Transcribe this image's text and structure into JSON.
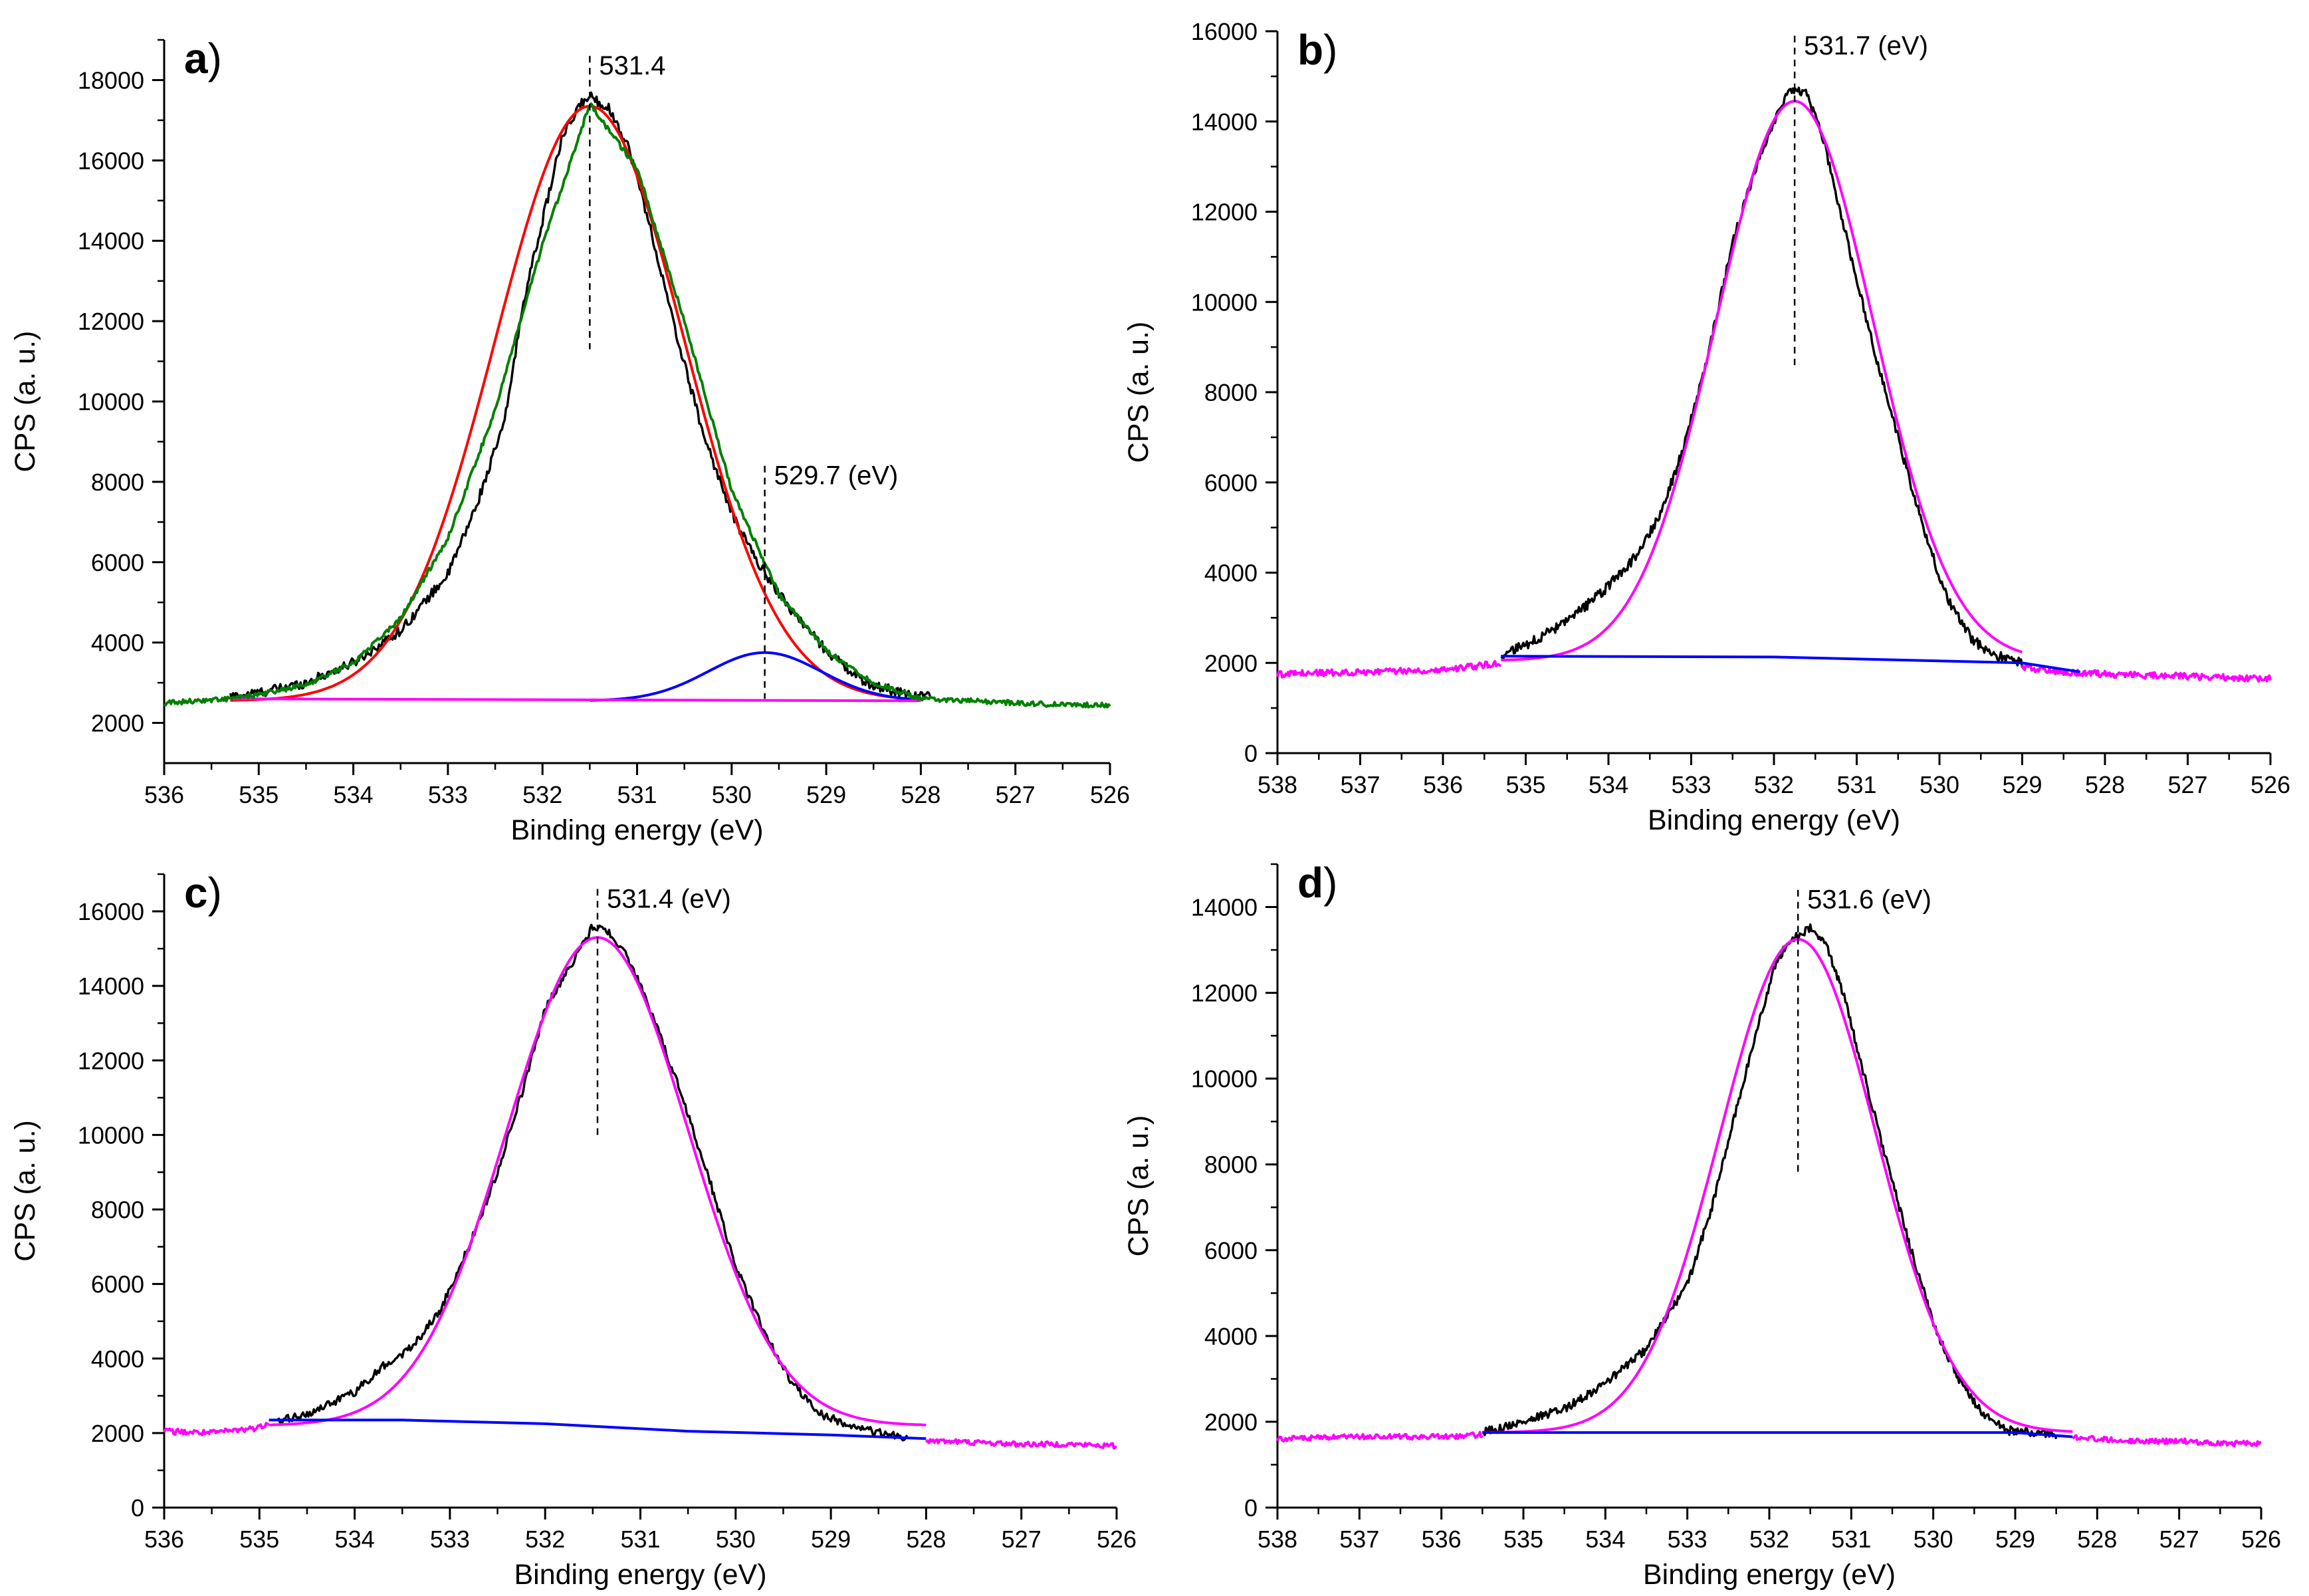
{
  "figure": {
    "panels_layout": "2x2 grid of XPS O 1s spectra"
  },
  "chart_data": [
    {
      "id": "a",
      "type": "line",
      "panel_label": "a",
      "xlabel": "Binding energy (eV)",
      "ylabel": "CPS (a. u.)",
      "xlim": [
        536,
        526
      ],
      "x_reversed": true,
      "ylim": [
        1000,
        19000
      ],
      "xticks": [
        536,
        535,
        534,
        533,
        532,
        531,
        530,
        529,
        528,
        527,
        526
      ],
      "yticks": [
        2000,
        4000,
        6000,
        8000,
        10000,
        12000,
        14000,
        16000,
        18000
      ],
      "grid": false,
      "legend": "none",
      "annotations": [
        {
          "text": "531.4",
          "x": 531.5,
          "y_top": 18600,
          "y_bottom": 11300
        },
        {
          "text": "529.7 (eV)",
          "x": 529.65,
          "y_top": 8400,
          "y_bottom": 2600
        }
      ],
      "series": [
        {
          "role": "raw",
          "color": "#000000",
          "x": [
            535.3,
            535.0,
            534.5,
            534.0,
            533.5,
            533.0,
            532.7,
            532.4,
            532.2,
            532.0,
            531.8,
            531.6,
            531.5,
            531.3,
            531.1,
            530.9,
            530.6,
            530.3,
            530.0,
            529.7,
            529.4,
            529.0,
            528.6,
            528.2,
            527.9
          ],
          "y": [
            2650,
            2750,
            3000,
            3500,
            4300,
            5700,
            7400,
            9500,
            12500,
            14500,
            16500,
            17400,
            17600,
            17300,
            16400,
            14700,
            11800,
            9200,
            7200,
            5900,
            4900,
            3800,
            3000,
            2750,
            2650
          ],
          "noise": 120
        },
        {
          "role": "peak-531.4",
          "color": "#ff0000",
          "gauss": {
            "center": 531.5,
            "sigma": 1.0,
            "amp": 14800,
            "base": 2550
          },
          "range": [
            535.3,
            528.0
          ]
        },
        {
          "role": "peak-529.7",
          "color": "#0000ff",
          "gauss": {
            "center": 529.65,
            "sigma": 0.6,
            "amp": 1200,
            "base": 2550
          },
          "range": [
            531.5,
            528.0
          ]
        },
        {
          "role": "background",
          "color": "#ff00ff",
          "x": [
            535.3,
            528.0
          ],
          "y": [
            2600,
            2550
          ]
        },
        {
          "role": "envelope",
          "color": "#008000",
          "x": [
            536.0,
            535.3,
            535.0,
            534.5,
            534.0,
            533.5,
            533.0,
            532.5,
            532.0,
            531.5,
            531.0,
            530.5,
            530.0,
            529.5,
            529.0,
            528.5,
            528.0,
            527.5,
            527.0,
            526.5,
            526.0
          ],
          "y": [
            2500,
            2600,
            2700,
            2950,
            3500,
            4600,
            6600,
            9800,
            13900,
            17400,
            15800,
            12000,
            7800,
            5200,
            3800,
            3000,
            2600,
            2550,
            2500,
            2450,
            2450
          ],
          "noise": 60
        }
      ]
    },
    {
      "id": "b",
      "type": "line",
      "panel_label": "b",
      "xlabel": "Binding energy (eV)",
      "ylabel": "CPS (a. u.)",
      "xlim": [
        538,
        526
      ],
      "x_reversed": true,
      "ylim": [
        0,
        16000
      ],
      "xticks": [
        538,
        537,
        536,
        535,
        534,
        533,
        532,
        531,
        530,
        529,
        528,
        527,
        526
      ],
      "yticks": [
        0,
        2000,
        4000,
        6000,
        8000,
        10000,
        12000,
        14000,
        16000
      ],
      "grid": false,
      "legend": "none",
      "annotations": [
        {
          "text": "531.7 (eV)",
          "x": 531.75,
          "y_top": 15900,
          "y_bottom": 8600
        }
      ],
      "series": [
        {
          "role": "raw",
          "color": "#000000",
          "x": [
            535.3,
            535.0,
            534.5,
            534.0,
            533.7,
            533.4,
            533.1,
            532.8,
            532.5,
            532.2,
            532.0,
            531.8,
            531.6,
            531.4,
            531.2,
            531.0,
            530.8,
            530.5,
            530.2,
            529.9,
            529.6,
            529.3,
            529.0
          ],
          "y": [
            2150,
            2400,
            2900,
            3700,
            4300,
            5200,
            6700,
            8800,
            11300,
            13100,
            14000,
            14700,
            14600,
            13600,
            12000,
            10500,
            9000,
            7000,
            5000,
            3400,
            2500,
            2150,
            2000
          ],
          "noise": 110
        },
        {
          "role": "fit",
          "color": "#ff00ff",
          "gauss": {
            "center": 531.75,
            "sigma": 0.95,
            "amp": 12400,
            "base": 2050
          },
          "range": [
            535.3,
            529.0
          ]
        },
        {
          "role": "baseline-noise",
          "color": "#ff00ff",
          "x": [
            538.0,
            537.0,
            536.0,
            535.5,
            535.3
          ],
          "y": [
            1750,
            1800,
            1850,
            1950,
            2000
          ],
          "noise": 70
        },
        {
          "role": "baseline-noise-right",
          "color": "#ff00ff",
          "x": [
            529.0,
            528.5,
            528.0,
            527.0,
            526.0
          ],
          "y": [
            1900,
            1800,
            1750,
            1700,
            1650
          ],
          "noise": 70
        },
        {
          "role": "background",
          "color": "#0000ff",
          "x": [
            535.3,
            532.0,
            529.0,
            528.3
          ],
          "y": [
            2150,
            2130,
            2000,
            1800
          ]
        }
      ]
    },
    {
      "id": "c",
      "type": "line",
      "panel_label": "c",
      "xlabel": "Binding energy (eV)",
      "ylabel": "CPS (a. u.)",
      "xlim": [
        536,
        526
      ],
      "x_reversed": true,
      "ylim": [
        0,
        17000
      ],
      "xticks": [
        536,
        535,
        534,
        533,
        532,
        531,
        530,
        529,
        528,
        527,
        526
      ],
      "yticks": [
        0,
        2000,
        4000,
        6000,
        8000,
        10000,
        12000,
        14000,
        16000
      ],
      "grid": false,
      "legend": "none",
      "annotations": [
        {
          "text": "531.4 (eV)",
          "x": 531.45,
          "y_top": 16600,
          "y_bottom": 10000
        }
      ],
      "series": [
        {
          "role": "raw",
          "color": "#000000",
          "x": [
            534.8,
            534.4,
            534.0,
            533.7,
            533.4,
            533.1,
            532.8,
            532.5,
            532.2,
            532.0,
            531.7,
            531.5,
            531.3,
            531.1,
            530.9,
            530.6,
            530.3,
            530.0,
            529.7,
            529.4,
            529.1,
            528.8,
            528.5,
            528.2
          ],
          "y": [
            2300,
            2600,
            3100,
            3800,
            4300,
            5300,
            7000,
            9000,
            11500,
            13400,
            14700,
            15600,
            15400,
            14600,
            13400,
            11300,
            9000,
            6500,
            4700,
            3300,
            2500,
            2200,
            2000,
            1900
          ],
          "noise": 110
        },
        {
          "role": "fit",
          "color": "#ff00ff",
          "gauss": {
            "center": 531.45,
            "sigma": 0.95,
            "amp": 13100,
            "base": 2200
          },
          "range": [
            534.9,
            528.0
          ]
        },
        {
          "role": "baseline-noise",
          "color": "#ff00ff",
          "x": [
            536.0,
            535.5,
            535.0,
            534.9
          ],
          "y": [
            2050,
            2000,
            2150,
            2300
          ],
          "noise": 80
        },
        {
          "role": "baseline-noise-right",
          "color": "#ff00ff",
          "x": [
            528.0,
            527.5,
            527.0,
            526.5,
            526.0
          ],
          "y": [
            1800,
            1750,
            1700,
            1700,
            1650
          ],
          "noise": 70
        },
        {
          "role": "background",
          "color": "#0000ff",
          "x": [
            534.9,
            533.5,
            532.0,
            530.5,
            529.0,
            528.0
          ],
          "y": [
            2350,
            2350,
            2250,
            2050,
            1950,
            1850
          ]
        }
      ]
    },
    {
      "id": "d",
      "type": "line",
      "panel_label": "d",
      "xlabel": "Binding energy (eV)",
      "ylabel": "CPS (a. u.)",
      "xlim": [
        538,
        526
      ],
      "x_reversed": true,
      "ylim": [
        0,
        15000
      ],
      "xticks": [
        538,
        537,
        536,
        535,
        534,
        533,
        532,
        531,
        530,
        529,
        528,
        527,
        526
      ],
      "yticks": [
        0,
        2000,
        4000,
        6000,
        8000,
        10000,
        12000,
        14000
      ],
      "grid": false,
      "legend": "none",
      "annotations": [
        {
          "text": "531.6 (eV)",
          "x": 531.65,
          "y_top": 14400,
          "y_bottom": 7800
        }
      ],
      "series": [
        {
          "role": "raw",
          "color": "#000000",
          "x": [
            535.5,
            535.0,
            534.5,
            534.0,
            533.5,
            533.0,
            532.7,
            532.4,
            532.1,
            531.9,
            531.7,
            531.5,
            531.3,
            531.1,
            530.9,
            530.6,
            530.3,
            530.0,
            529.7,
            529.4,
            529.1,
            528.8,
            528.5
          ],
          "y": [
            1750,
            2000,
            2300,
            2900,
            3700,
            5200,
            7000,
            9300,
            11500,
            12800,
            13300,
            13500,
            13100,
            12000,
            10500,
            8300,
            6200,
            4300,
            3000,
            2200,
            1800,
            1750,
            1700
          ],
          "noise": 100
        },
        {
          "role": "fit",
          "color": "#ff00ff",
          "gauss": {
            "center": 531.65,
            "sigma": 0.95,
            "amp": 11500,
            "base": 1750
          },
          "range": [
            535.5,
            528.3
          ]
        },
        {
          "role": "baseline-noise",
          "color": "#ff00ff",
          "x": [
            538.0,
            537.0,
            536.0,
            535.5
          ],
          "y": [
            1600,
            1650,
            1650,
            1700
          ],
          "noise": 60
        },
        {
          "role": "baseline-noise-right",
          "color": "#ff00ff",
          "x": [
            528.3,
            528.0,
            527.5,
            527.0,
            526.5,
            526.0
          ],
          "y": [
            1650,
            1600,
            1550,
            1550,
            1500,
            1500
          ],
          "noise": 60
        },
        {
          "role": "background",
          "color": "#0000ff",
          "x": [
            535.5,
            532.0,
            529.0,
            528.3
          ],
          "y": [
            1750,
            1750,
            1750,
            1650
          ]
        }
      ]
    }
  ]
}
